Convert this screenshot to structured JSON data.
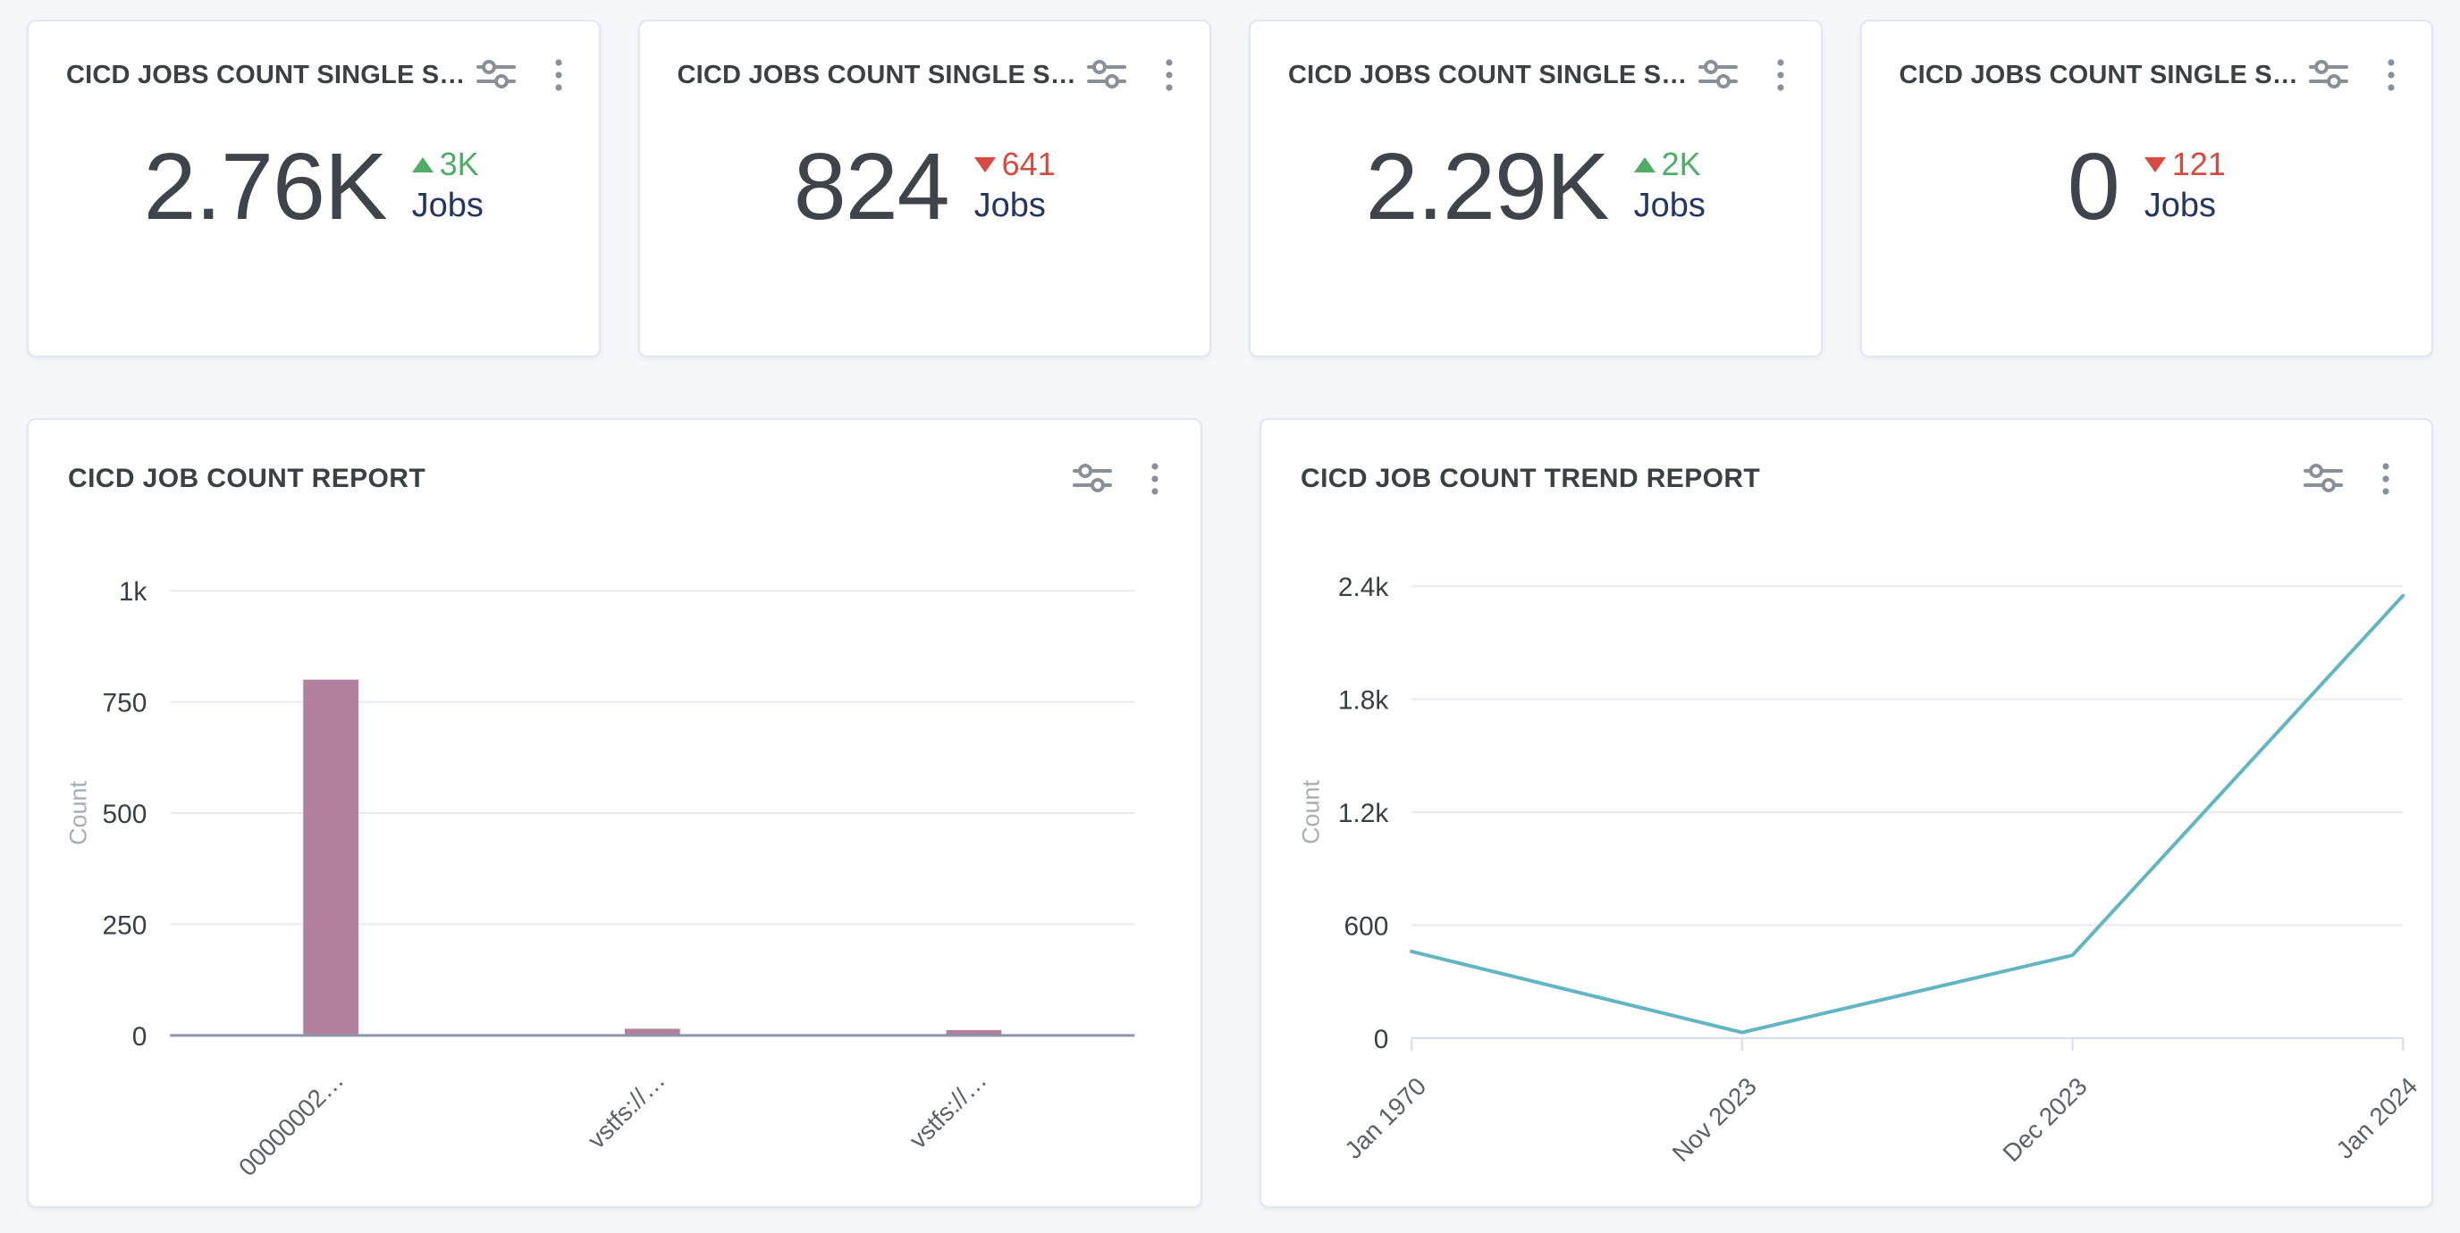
{
  "theme": {
    "background": "#f6f7fb",
    "card_bg": "#ffffff",
    "card_border": "#e3e6f0",
    "title_color": "#3c4043",
    "value_color": "#3f434a",
    "unit_color": "#24365f",
    "green": "#4fad68",
    "red": "#d64a3f",
    "icon_color": "#8a9097",
    "grid_color": "#e8eaf0",
    "bar_axis_color": "#8e95a8",
    "trend_axis_color": "#d7dbf1",
    "tick_label_color": "#3a3e45",
    "x_label_color": "#5c6167",
    "axis_title_color": "#a7acb5"
  },
  "icons": {
    "settings": "sliders-icon",
    "menu": "kebab-menu-icon"
  },
  "stat_cards": [
    {
      "title": "CICD JOBS COUNT SINGLE S…",
      "value": "2.76K",
      "delta": "3K",
      "direction": "up",
      "unit": "Jobs"
    },
    {
      "title": "CICD JOBS COUNT SINGLE S…",
      "value": "824",
      "delta": "641",
      "direction": "down",
      "unit": "Jobs"
    },
    {
      "title": "CICD JOBS COUNT SINGLE S…",
      "value": "2.29K",
      "delta": "2K",
      "direction": "up",
      "unit": "Jobs"
    },
    {
      "title": "CICD JOBS COUNT SINGLE S…",
      "value": "0",
      "delta": "121",
      "direction": "down",
      "unit": "Jobs"
    }
  ],
  "chart_data": [
    {
      "type": "bar",
      "title": "CICD JOB COUNT REPORT",
      "xlabel": "",
      "ylabel": "Count",
      "categories": [
        "00000002…",
        "vstfs://…",
        "vstfs://…"
      ],
      "values": [
        800,
        15,
        12
      ],
      "yticks": {
        "values": [
          0,
          250,
          500,
          750,
          1000
        ],
        "labels": [
          "0",
          "250",
          "500",
          "750",
          "1k"
        ]
      },
      "ylim": [
        0,
        1000
      ],
      "bar_color": "#b27f9c",
      "grid": true,
      "legend": false,
      "x_label_rotation": -45
    },
    {
      "type": "line",
      "title": "CICD JOB COUNT TREND REPORT",
      "xlabel": "",
      "ylabel": "Count",
      "x": [
        "Jan 1970",
        "Nov 2023",
        "Dec 2023",
        "Jan 2024"
      ],
      "values": [
        460,
        30,
        440,
        2350
      ],
      "yticks": {
        "values": [
          0,
          600,
          1200,
          1800,
          2400
        ],
        "labels": [
          "0",
          "600",
          "1.2k",
          "1.8k",
          "2.4k"
        ]
      },
      "ylim": [
        0,
        2400
      ],
      "line_color": "#62b5c2",
      "grid": true,
      "legend": false,
      "x_label_rotation": -45
    }
  ]
}
